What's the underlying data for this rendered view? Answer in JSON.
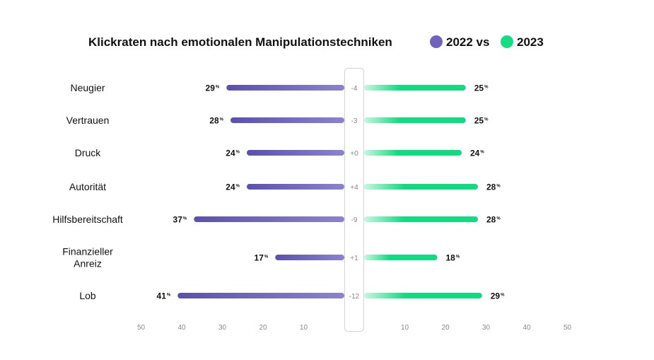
{
  "chart_data": {
    "type": "bar",
    "title": "Klickraten nach emotionalen Manipulationstechniken",
    "legend": [
      {
        "label": "2022 vs",
        "color": "#6f63bf"
      },
      {
        "label": "2023",
        "color": "#16dd84"
      }
    ],
    "categories": [
      [
        "Neugier"
      ],
      [
        "Vertrauen"
      ],
      [
        "Druck"
      ],
      [
        "Autorität"
      ],
      [
        "Hilfsbereitschaft"
      ],
      [
        "Finanzieller",
        "Anreiz"
      ],
      [
        "Lob"
      ]
    ],
    "series": [
      {
        "name": "2022",
        "values": [
          29,
          28,
          24,
          24,
          37,
          17,
          41
        ]
      },
      {
        "name": "2023",
        "values": [
          25,
          25,
          24,
          28,
          28,
          18,
          29
        ]
      }
    ],
    "differences": [
      "-4",
      "-3",
      "+0",
      "+4",
      "-9",
      "+1",
      "-12"
    ],
    "unit": "%",
    "xlim": [
      0,
      50
    ],
    "left_ticks": [
      50,
      40,
      30,
      20,
      10
    ],
    "right_ticks": [
      10,
      20,
      30,
      40,
      50
    ],
    "colors": {
      "left_dark": "#5a51ad",
      "left_light": "#8b82d1",
      "right_light": "#c8f7e0",
      "right_dark": "#10db80"
    }
  }
}
